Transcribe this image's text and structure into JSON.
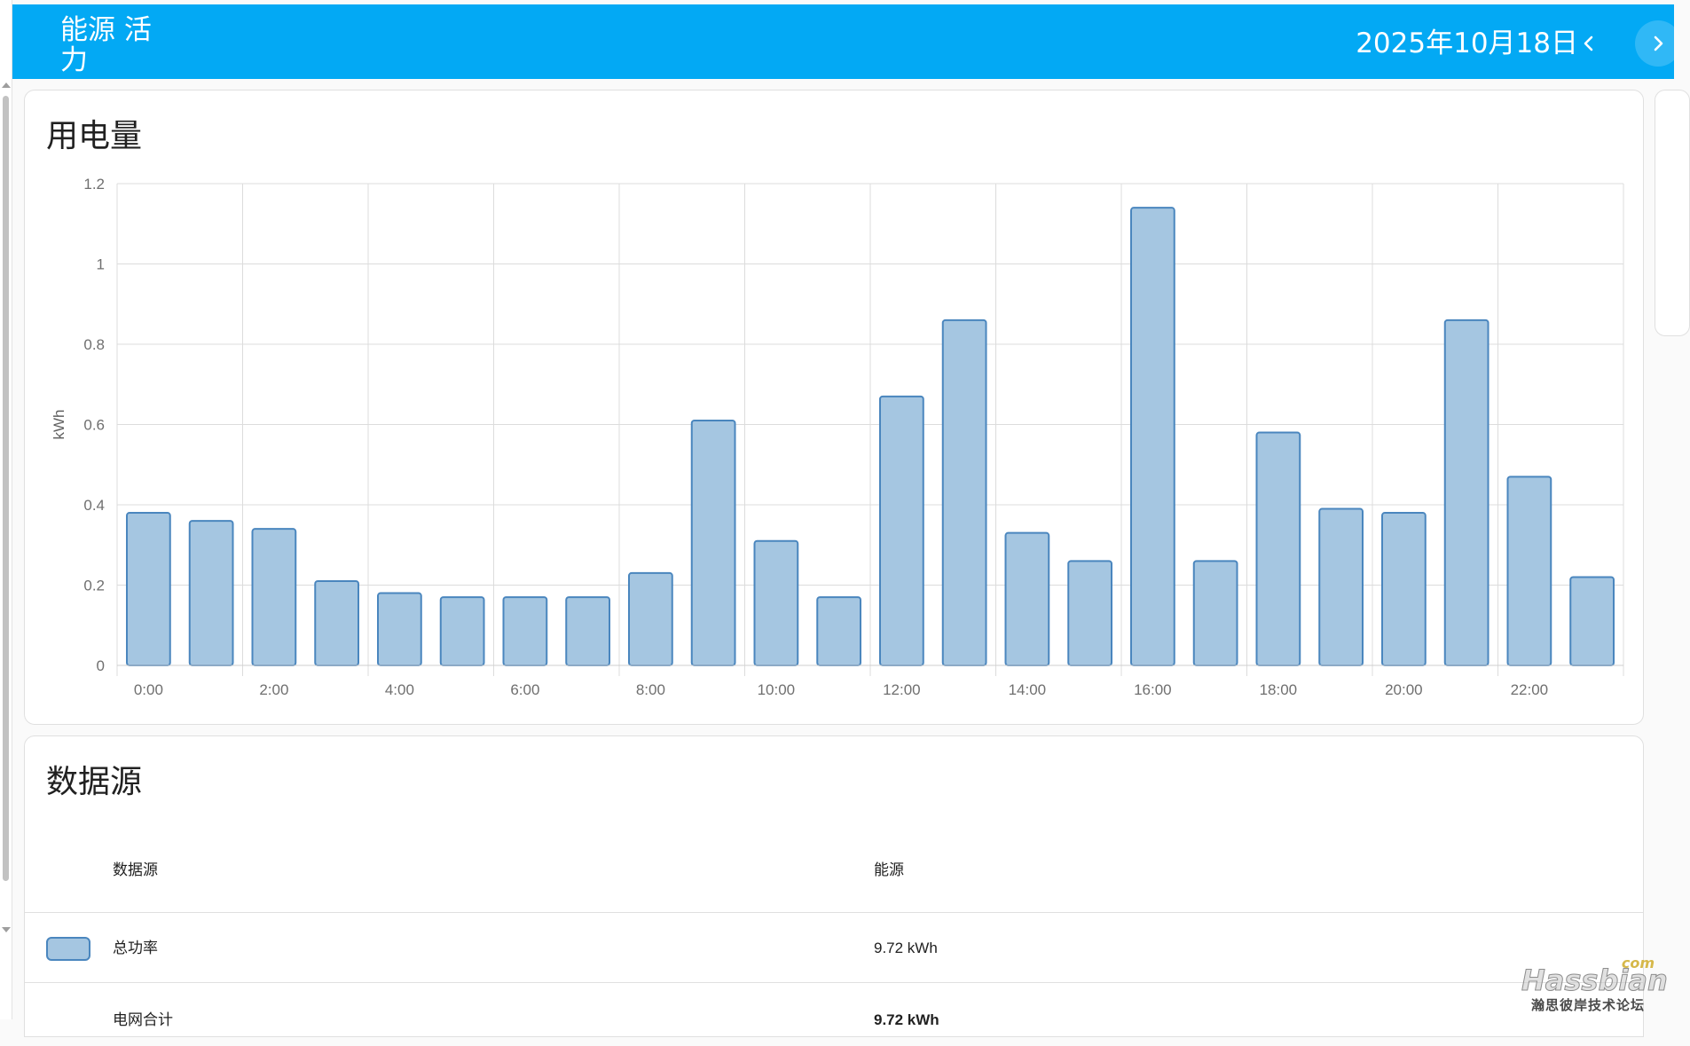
{
  "header": {
    "title": "能源 活力",
    "date": "2025年10月18日",
    "prev_icon": "chevron-left-icon",
    "next_icon": "chevron-right-icon"
  },
  "usage_card": {
    "title": "用电量"
  },
  "chart_data": {
    "type": "bar",
    "ylabel": "kWh",
    "ylim": [
      0,
      1.2
    ],
    "yticks": [
      0,
      0.2,
      0.4,
      0.6,
      0.8,
      1,
      1.2
    ],
    "ytick_labels": [
      "0",
      "0.2",
      "0.4",
      "0.6",
      "0.8",
      "1",
      "1.2"
    ],
    "xtick_labels": [
      "0:00",
      "2:00",
      "4:00",
      "6:00",
      "8:00",
      "10:00",
      "12:00",
      "14:00",
      "16:00",
      "18:00",
      "20:00",
      "22:00"
    ],
    "categories": [
      "0:00",
      "1:00",
      "2:00",
      "3:00",
      "4:00",
      "5:00",
      "6:00",
      "7:00",
      "8:00",
      "9:00",
      "10:00",
      "11:00",
      "12:00",
      "13:00",
      "14:00",
      "15:00",
      "16:00",
      "17:00",
      "18:00",
      "19:00",
      "20:00",
      "21:00",
      "22:00",
      "23:00"
    ],
    "values": [
      0.38,
      0.36,
      0.34,
      0.21,
      0.18,
      0.17,
      0.17,
      0.17,
      0.23,
      0.61,
      0.31,
      0.17,
      0.67,
      0.86,
      0.33,
      0.26,
      1.14,
      0.26,
      0.58,
      0.39,
      0.38,
      0.86,
      0.47,
      0.22
    ],
    "grid": true,
    "colors": {
      "fill": "#a5c6e1",
      "stroke": "#4a86be"
    }
  },
  "sources_card": {
    "title": "数据源",
    "columns": {
      "source": "数据源",
      "energy": "能源"
    },
    "rows": [
      {
        "name": "总功率",
        "value": "9.72 kWh",
        "color": "#a5c6e1"
      }
    ],
    "total": {
      "name": "电网合计",
      "value": "9.72 kWh"
    }
  },
  "watermark": {
    "brand": "Hassbian",
    "suffix": "com",
    "subtitle": "瀚思彼岸技术论坛"
  }
}
